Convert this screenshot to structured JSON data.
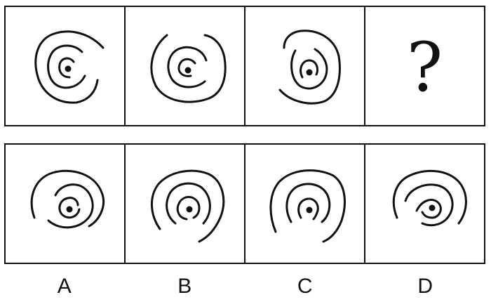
{
  "question_mark": "?",
  "options": [
    "A",
    "B",
    "C",
    "D"
  ],
  "figures": {
    "top": [
      "spiral-1",
      "spiral-2",
      "spiral-3",
      "question"
    ],
    "bottom": [
      "option-a",
      "option-b",
      "option-c",
      "option-d"
    ]
  }
}
